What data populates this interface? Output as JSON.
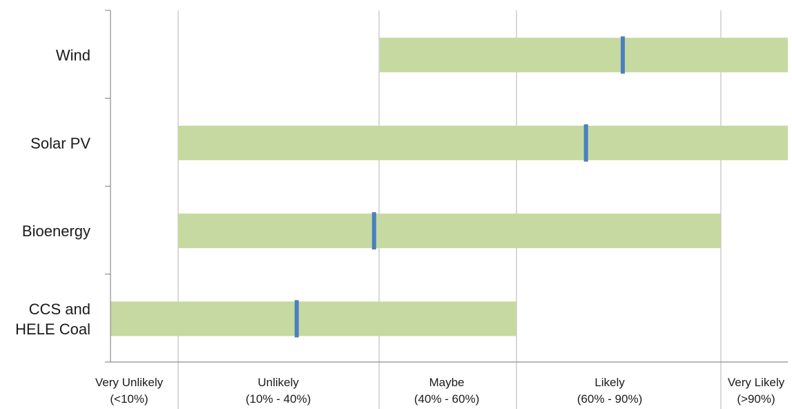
{
  "chart_data": {
    "type": "bar",
    "title": "",
    "xlabel": "",
    "ylabel": "",
    "categories": [
      {
        "lines": [
          "Wind"
        ]
      },
      {
        "lines": [
          "Solar PV"
        ]
      },
      {
        "lines": [
          "Bioenergy"
        ]
      },
      {
        "lines": [
          "CCS and",
          "HELE Coal"
        ]
      }
    ],
    "bars": [
      {
        "start": 3.0,
        "end": 6.0,
        "marker": 4.2
      },
      {
        "start": 1.0,
        "end": 6.0,
        "marker": 4.0
      },
      {
        "start": 1.0,
        "end": 5.0,
        "marker": 1.95
      },
      {
        "start": 0.0,
        "end": 3.0,
        "marker": 1.45
      }
    ],
    "x_boundaries": [
      0,
      1,
      3,
      3,
      5,
      6
    ],
    "x_ticks": [
      {
        "at": 0.5,
        "lines": [
          "Very Unlikely",
          "(<10%)"
        ]
      },
      {
        "at": 2.0,
        "lines": [
          "Unlikely",
          "(10% - 40%)"
        ]
      },
      {
        "at": 3.5,
        "lines": [
          "Maybe",
          "(40% - 60%)"
        ]
      },
      {
        "at": 4.5,
        "lines": [
          "Likely",
          "(60% - 90%)"
        ]
      },
      {
        "at": 5.5,
        "lines": [
          "Very Likely",
          "(>90%)"
        ]
      }
    ],
    "xlim": [
      0,
      6
    ],
    "grid": true,
    "legend": "none",
    "colors": {
      "range": "#c6d9a0",
      "marker": "#4a7fc1",
      "grid": "#b0b0b0",
      "axis": "#8c8c8c"
    }
  }
}
